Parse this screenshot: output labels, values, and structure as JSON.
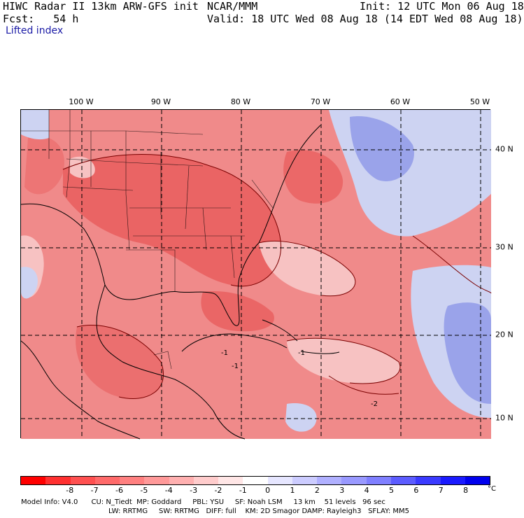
{
  "header": {
    "title": "HIWC Radar II 13km ARW-GFS init",
    "org": "NCAR/MMM",
    "init": "Init: 12 UTC Mon 06 Aug 18",
    "fcst": "Fcst:   54 h",
    "valid": "Valid: 18 UTC Wed 08 Aug 18 (14 EDT Wed 08 Aug 18)",
    "field": "Lifted index"
  },
  "map": {
    "lon_labels": [
      "100 W",
      "90 W",
      "80 W",
      "70 W",
      "60 W",
      "50 W"
    ],
    "lat_labels": [
      "40 N",
      "30 N",
      "20 N",
      "10 N"
    ],
    "contour_labels": [
      "-1",
      "-1",
      "-1",
      "-2"
    ],
    "colors": {
      "very_negative": "#e85a5a",
      "negative": "#f08a8a",
      "slightly_negative": "#f7c2c2",
      "neutral": "#f8eef0",
      "positive": "#cdd3f2",
      "more_positive": "#9aa3ea",
      "contour": "#7a0000",
      "coast": "#000000",
      "grid": "#000000"
    }
  },
  "colorbar": {
    "ticks": [
      "-8",
      "-7",
      "-6",
      "-5",
      "-4",
      "-3",
      "-2",
      "-1",
      "0",
      "1",
      "2",
      "3",
      "4",
      "5",
      "6",
      "7",
      "8"
    ],
    "unit": "°C",
    "colors": [
      "#ff0000",
      "#ff3030",
      "#ff5050",
      "#ff6a6a",
      "#ff8080",
      "#ff9999",
      "#ffb0b0",
      "#ffcccc",
      "#ffe6e6",
      "#ffffff",
      "#e6e6ff",
      "#ccccff",
      "#b0b0ff",
      "#9999ff",
      "#7f7fff",
      "#5c5cff",
      "#3a3aff",
      "#1a1aff",
      "#0000ee"
    ]
  },
  "footer": {
    "line1": "Model Info: V4.0      CU: N_Tiedt  MP: Goddard     PBL: YSU     SF: Noah LSM     13 km    51 levels   96 sec",
    "line2": "LW: RRTMG     SW: RRTMG   DIFF: full    KM: 2D Smagor DAMP: Rayleigh3   SFLAY: MM5"
  }
}
